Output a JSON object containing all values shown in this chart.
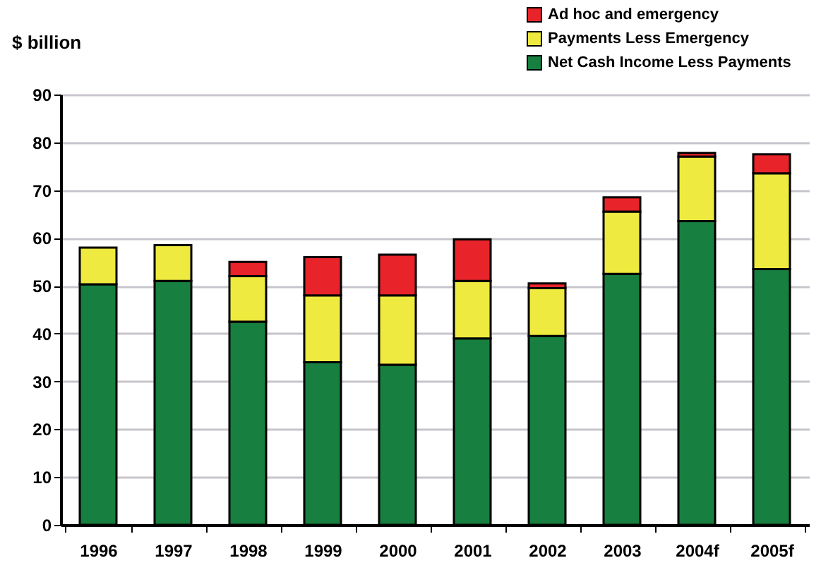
{
  "chart_data": {
    "type": "bar",
    "stacked": true,
    "ylabel": "$ billion",
    "categories": [
      "1996",
      "1997",
      "1998",
      "1999",
      "2000",
      "2001",
      "2002",
      "2003",
      "2004f",
      "2005f"
    ],
    "series": [
      {
        "name": "Net Cash Income Less Payments",
        "color": "#177f3f",
        "values": [
          50.3,
          51,
          42.5,
          34,
          33.5,
          39,
          39.5,
          52.5,
          63.5,
          53.5
        ]
      },
      {
        "name": "Payments Less Emergency",
        "color": "#eeea3f",
        "values": [
          7.7,
          7.5,
          9.5,
          14,
          14.5,
          12,
          10,
          13,
          13.5,
          20
        ]
      },
      {
        "name": "Ad hoc and emergency",
        "color": "#e8242a",
        "values": [
          null,
          null,
          3,
          8,
          8.5,
          8.7,
          1,
          3,
          0.8,
          4
        ]
      }
    ],
    "ylim": [
      0,
      90
    ],
    "yticks": [
      0,
      10,
      20,
      30,
      40,
      50,
      60,
      70,
      80,
      90
    ],
    "grid": "y",
    "legend": "top right"
  }
}
